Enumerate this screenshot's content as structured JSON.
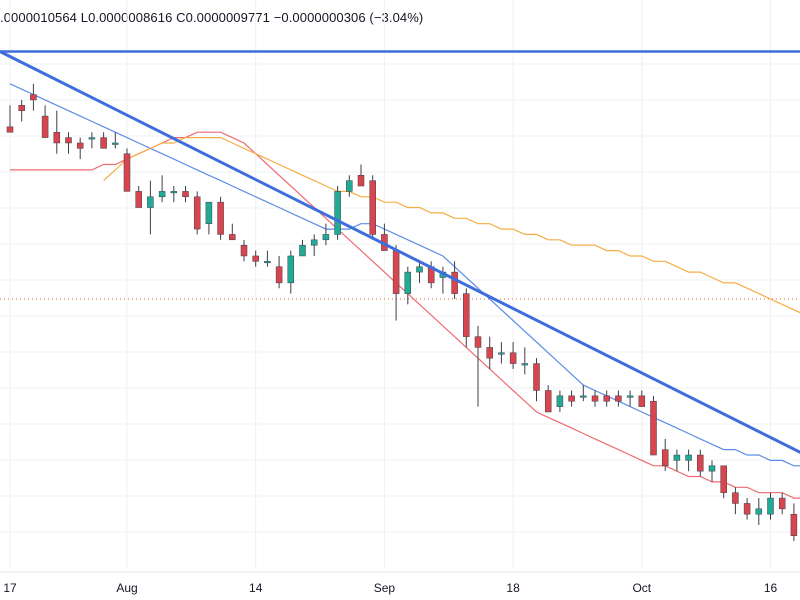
{
  "ohlc_bar": {
    "open": ".0000010564",
    "low": "L0.0000008616",
    "close": "C0.0000009771",
    "change": "−0.0000000306 (−3.04%)"
  },
  "colors": {
    "up": "#22ab94",
    "down": "#d9454f",
    "trendline": "#3d6fdc",
    "ma_fast": "#5b8ee6",
    "ma_mid": "#ef6b73",
    "ma_slow": "#f6ad45",
    "grid": "#eef0f3",
    "dotted": "#e86a3a"
  },
  "chart_data": {
    "type": "candlestick",
    "x_tick_labels": [
      "17",
      "Aug",
      "14",
      "Sep",
      "18",
      "Oct",
      "16"
    ],
    "x_tick_index": [
      0,
      10,
      21,
      32,
      43,
      54,
      65
    ],
    "candles": [
      [
        0.98,
        1.02,
        0.97,
        0.97
      ],
      [
        1.02,
        1.03,
        0.99,
        1.01
      ],
      [
        1.04,
        1.06,
        1.01,
        1.03
      ],
      [
        1.0,
        1.02,
        0.96,
        0.96
      ],
      [
        0.97,
        1.01,
        0.93,
        0.95
      ],
      [
        0.96,
        0.97,
        0.93,
        0.95
      ],
      [
        0.95,
        0.96,
        0.92,
        0.94
      ],
      [
        0.96,
        0.97,
        0.94,
        0.96
      ],
      [
        0.96,
        0.97,
        0.94,
        0.94
      ],
      [
        0.95,
        0.97,
        0.94,
        0.95
      ],
      [
        0.93,
        0.94,
        0.86,
        0.86
      ],
      [
        0.86,
        0.87,
        0.83,
        0.83
      ],
      [
        0.83,
        0.88,
        0.78,
        0.85
      ],
      [
        0.85,
        0.89,
        0.84,
        0.86
      ],
      [
        0.86,
        0.87,
        0.84,
        0.86
      ],
      [
        0.86,
        0.87,
        0.84,
        0.85
      ],
      [
        0.85,
        0.86,
        0.78,
        0.79
      ],
      [
        0.8,
        0.84,
        0.78,
        0.84
      ],
      [
        0.84,
        0.85,
        0.77,
        0.78
      ],
      [
        0.78,
        0.8,
        0.77,
        0.77
      ],
      [
        0.76,
        0.77,
        0.73,
        0.74
      ],
      [
        0.74,
        0.75,
        0.72,
        0.73
      ],
      [
        0.73,
        0.75,
        0.72,
        0.73
      ],
      [
        0.72,
        0.74,
        0.68,
        0.69
      ],
      [
        0.69,
        0.75,
        0.67,
        0.74
      ],
      [
        0.74,
        0.77,
        0.74,
        0.76
      ],
      [
        0.76,
        0.78,
        0.74,
        0.77
      ],
      [
        0.77,
        0.8,
        0.76,
        0.78
      ],
      [
        0.78,
        0.87,
        0.77,
        0.86
      ],
      [
        0.86,
        0.89,
        0.85,
        0.88
      ],
      [
        0.89,
        0.91,
        0.87,
        0.87
      ],
      [
        0.88,
        0.89,
        0.77,
        0.78
      ],
      [
        0.78,
        0.8,
        0.75,
        0.75
      ],
      [
        0.75,
        0.76,
        0.62,
        0.67
      ],
      [
        0.67,
        0.72,
        0.65,
        0.71
      ],
      [
        0.71,
        0.73,
        0.69,
        0.72
      ],
      [
        0.72,
        0.73,
        0.68,
        0.69
      ],
      [
        0.7,
        0.72,
        0.67,
        0.71
      ],
      [
        0.71,
        0.73,
        0.66,
        0.67
      ],
      [
        0.67,
        0.68,
        0.57,
        0.59
      ],
      [
        0.59,
        0.61,
        0.46,
        0.57
      ],
      [
        0.57,
        0.59,
        0.53,
        0.55
      ],
      [
        0.56,
        0.58,
        0.54,
        0.56
      ],
      [
        0.56,
        0.58,
        0.53,
        0.54
      ],
      [
        0.54,
        0.57,
        0.52,
        0.54
      ],
      [
        0.54,
        0.55,
        0.47,
        0.49
      ],
      [
        0.49,
        0.5,
        0.45,
        0.45
      ],
      [
        0.46,
        0.49,
        0.45,
        0.48
      ],
      [
        0.48,
        0.49,
        0.46,
        0.47
      ],
      [
        0.48,
        0.5,
        0.47,
        0.48
      ],
      [
        0.48,
        0.49,
        0.46,
        0.47
      ],
      [
        0.48,
        0.49,
        0.46,
        0.47
      ],
      [
        0.48,
        0.49,
        0.46,
        0.47
      ],
      [
        0.48,
        0.49,
        0.46,
        0.48
      ],
      [
        0.48,
        0.49,
        0.46,
        0.46
      ],
      [
        0.47,
        0.48,
        0.37,
        0.37
      ],
      [
        0.38,
        0.4,
        0.34,
        0.35
      ],
      [
        0.36,
        0.38,
        0.34,
        0.37
      ],
      [
        0.36,
        0.38,
        0.34,
        0.37
      ],
      [
        0.37,
        0.38,
        0.33,
        0.34
      ],
      [
        0.34,
        0.36,
        0.32,
        0.35
      ],
      [
        0.35,
        0.35,
        0.29,
        0.3
      ],
      [
        0.3,
        0.31,
        0.26,
        0.28
      ],
      [
        0.28,
        0.29,
        0.25,
        0.26
      ],
      [
        0.26,
        0.29,
        0.24,
        0.27
      ],
      [
        0.26,
        0.3,
        0.25,
        0.29
      ],
      [
        0.29,
        0.3,
        0.26,
        0.27
      ],
      [
        0.26,
        0.28,
        0.21,
        0.22
      ],
      [
        0.22,
        0.26,
        0.2,
        0.25
      ]
    ],
    "moving_averages": [
      {
        "name": "MA fast",
        "values": [
          1.06,
          1.05,
          1.04,
          1.03,
          1.02,
          1.01,
          1.0,
          0.99,
          0.98,
          0.97,
          0.96,
          0.95,
          0.94,
          0.93,
          0.92,
          0.91,
          0.9,
          0.89,
          0.88,
          0.87,
          0.86,
          0.85,
          0.84,
          0.83,
          0.82,
          0.81,
          0.8,
          0.79,
          0.79,
          0.79,
          0.8,
          0.8,
          0.79,
          0.78,
          0.77,
          0.76,
          0.75,
          0.74,
          0.72,
          0.7,
          0.68,
          0.66,
          0.64,
          0.62,
          0.6,
          0.58,
          0.56,
          0.54,
          0.52,
          0.5,
          0.49,
          0.48,
          0.47,
          0.46,
          0.45,
          0.44,
          0.43,
          0.42,
          0.41,
          0.4,
          0.39,
          0.38,
          0.38,
          0.37,
          0.37,
          0.36,
          0.36,
          0.35,
          0.35
        ]
      },
      {
        "name": "MA mid",
        "values": [
          0.9,
          0.9,
          0.9,
          0.9,
          0.9,
          0.9,
          0.9,
          0.9,
          0.91,
          0.91,
          0.92,
          0.93,
          0.94,
          0.95,
          0.96,
          0.96,
          0.97,
          0.97,
          0.97,
          0.96,
          0.95,
          0.93,
          0.91,
          0.89,
          0.87,
          0.85,
          0.83,
          0.81,
          0.79,
          0.77,
          0.75,
          0.73,
          0.71,
          0.69,
          0.67,
          0.65,
          0.63,
          0.61,
          0.59,
          0.57,
          0.55,
          0.53,
          0.51,
          0.49,
          0.47,
          0.45,
          0.44,
          0.43,
          0.42,
          0.41,
          0.4,
          0.39,
          0.38,
          0.37,
          0.36,
          0.35,
          0.35,
          0.34,
          0.33,
          0.33,
          0.32,
          0.32,
          0.31,
          0.31,
          0.3,
          0.3,
          0.3,
          0.29,
          0.29
        ]
      },
      {
        "name": "MA slow",
        "values": [
          null,
          null,
          null,
          null,
          null,
          null,
          null,
          null,
          0.88,
          0.9,
          0.92,
          0.93,
          0.94,
          0.95,
          0.95,
          0.96,
          0.96,
          0.96,
          0.96,
          0.95,
          0.94,
          0.93,
          0.92,
          0.91,
          0.9,
          0.89,
          0.88,
          0.87,
          0.86,
          0.86,
          0.85,
          0.85,
          0.84,
          0.84,
          0.83,
          0.83,
          0.82,
          0.82,
          0.81,
          0.81,
          0.8,
          0.8,
          0.79,
          0.79,
          0.78,
          0.78,
          0.77,
          0.77,
          0.76,
          0.76,
          0.76,
          0.75,
          0.75,
          0.74,
          0.74,
          0.73,
          0.73,
          0.72,
          0.71,
          0.71,
          0.7,
          0.69,
          0.69,
          0.68,
          0.67,
          0.66,
          0.65,
          0.64,
          0.63
        ]
      }
    ],
    "horizontal_line": 1.12,
    "trendline": {
      "from": [
        0,
        1.12
      ],
      "to": [
        68,
        0.37
      ]
    },
    "dotted_level": 0.66,
    "y_range": [
      0.16,
      1.16
    ],
    "grid": true
  }
}
